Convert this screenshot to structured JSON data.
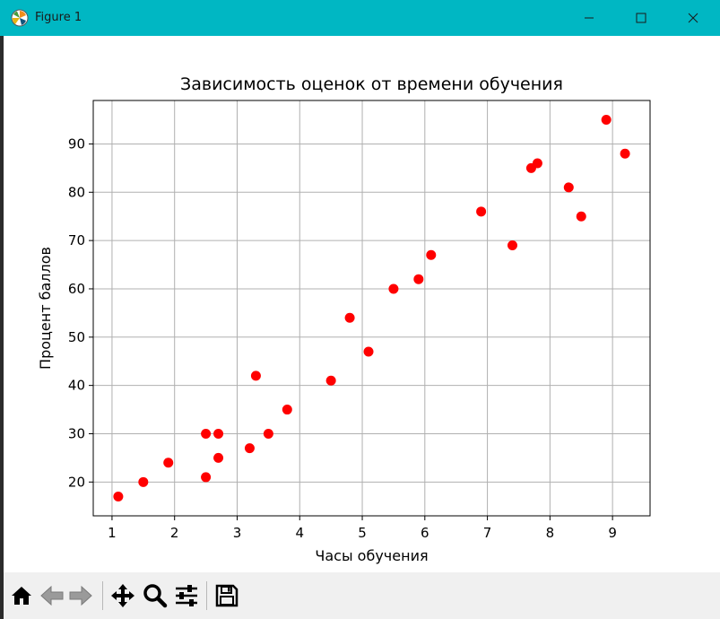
{
  "window": {
    "title": "Figure 1",
    "accent": "#00b7c3"
  },
  "toolbar": {
    "buttons": [
      {
        "name": "home-button",
        "icon": "home-icon"
      },
      {
        "name": "back-button",
        "icon": "arrow-left-icon"
      },
      {
        "name": "forward-button",
        "icon": "arrow-right-icon"
      },
      {
        "name": "pan-button",
        "icon": "move-icon"
      },
      {
        "name": "zoom-button",
        "icon": "magnifier-icon"
      },
      {
        "name": "configure-subplots-button",
        "icon": "sliders-icon"
      },
      {
        "name": "save-button",
        "icon": "floppy-disk-icon"
      }
    ]
  },
  "chart_data": {
    "type": "scatter",
    "title": "Зависимость оценок от времени обучения",
    "xlabel": "Часы обучения",
    "ylabel": "Процент баллов",
    "xlim": [
      0.7,
      9.6
    ],
    "ylim": [
      13,
      99
    ],
    "xticks": [
      1,
      2,
      3,
      4,
      5,
      6,
      7,
      8,
      9
    ],
    "yticks": [
      20,
      30,
      40,
      50,
      60,
      70,
      80,
      90
    ],
    "grid": true,
    "marker_color": "#ff0000",
    "points": [
      {
        "x": 1.1,
        "y": 17
      },
      {
        "x": 1.5,
        "y": 20
      },
      {
        "x": 1.9,
        "y": 24
      },
      {
        "x": 2.5,
        "y": 21
      },
      {
        "x": 2.5,
        "y": 30
      },
      {
        "x": 2.7,
        "y": 25
      },
      {
        "x": 2.7,
        "y": 30
      },
      {
        "x": 3.2,
        "y": 27
      },
      {
        "x": 3.3,
        "y": 42
      },
      {
        "x": 3.5,
        "y": 30
      },
      {
        "x": 3.8,
        "y": 35
      },
      {
        "x": 4.5,
        "y": 41
      },
      {
        "x": 4.8,
        "y": 54
      },
      {
        "x": 5.1,
        "y": 47
      },
      {
        "x": 5.5,
        "y": 60
      },
      {
        "x": 5.9,
        "y": 62
      },
      {
        "x": 6.1,
        "y": 67
      },
      {
        "x": 6.9,
        "y": 76
      },
      {
        "x": 7.4,
        "y": 69
      },
      {
        "x": 7.7,
        "y": 85
      },
      {
        "x": 7.8,
        "y": 86
      },
      {
        "x": 8.3,
        "y": 81
      },
      {
        "x": 8.5,
        "y": 75
      },
      {
        "x": 8.9,
        "y": 95
      },
      {
        "x": 9.2,
        "y": 88
      }
    ]
  }
}
